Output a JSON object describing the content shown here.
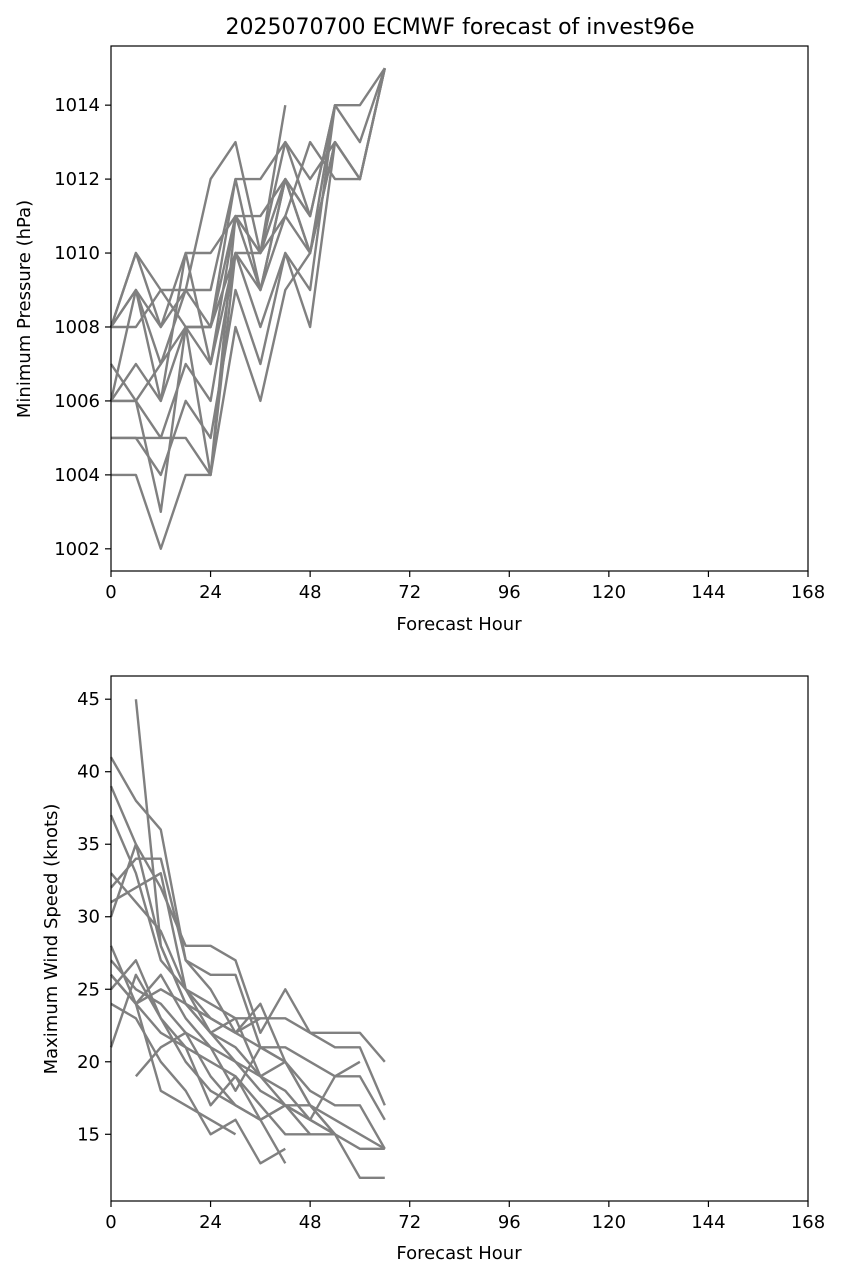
{
  "title": "2025070700 ECMWF forecast of invest96e",
  "colors": {
    "series": "#808080",
    "axis": "#000000",
    "background": "#ffffff"
  },
  "chart_data": [
    {
      "type": "line",
      "title": "2025070700 ECMWF forecast of invest96e",
      "xlabel": "Forecast Hour",
      "ylabel": "Minimum Pressure (hPa)",
      "xlim": [
        0,
        168
      ],
      "ylim": [
        1001.4,
        1015.6
      ],
      "xticks": [
        0,
        24,
        48,
        72,
        96,
        120,
        144,
        168
      ],
      "yticks": [
        1002,
        1004,
        1006,
        1008,
        1010,
        1012,
        1014
      ],
      "grid": false,
      "series": [
        {
          "x": [
            0,
            6,
            12,
            18,
            24,
            30,
            36,
            42,
            48,
            54,
            60,
            66
          ],
          "y": [
            1008,
            1010,
            1008,
            1010,
            1010,
            1011,
            1011,
            1012,
            1011,
            1014,
            1014,
            1015
          ]
        },
        {
          "x": [
            0,
            6,
            12,
            18,
            24,
            30,
            36,
            42,
            48,
            54,
            60,
            66
          ],
          "y": [
            1008,
            1009,
            1008,
            1009,
            1012,
            1013,
            1010,
            1013,
            1011,
            1014,
            1013,
            1015
          ]
        },
        {
          "x": [
            0,
            6,
            12,
            18,
            24,
            30,
            36,
            42,
            48,
            54,
            60,
            66
          ],
          "y": [
            1008,
            1009,
            1007,
            1009,
            1009,
            1012,
            1012,
            1013,
            1012,
            1013,
            1012,
            1015
          ]
        },
        {
          "x": [
            0,
            6,
            12,
            18,
            24,
            30,
            36,
            42,
            48,
            54,
            60,
            66
          ],
          "y": [
            1008,
            1010,
            1009,
            1009,
            1008,
            1011,
            1010,
            1012,
            1010,
            1013,
            1012,
            1015
          ]
        },
        {
          "x": [
            0,
            6,
            12,
            18,
            24,
            30,
            36,
            42,
            48,
            54,
            60,
            66
          ],
          "y": [
            1008,
            1008,
            1009,
            1008,
            1008,
            1012,
            1009,
            1011,
            1013,
            1012,
            1012,
            1015
          ]
        },
        {
          "x": [
            0,
            6,
            12,
            18,
            24,
            30,
            36,
            42
          ],
          "y": [
            1006,
            1009,
            1006,
            1010,
            1007,
            1011,
            1010,
            1014
          ]
        },
        {
          "x": [
            0,
            6,
            12,
            18,
            24,
            30,
            36,
            42,
            48,
            54
          ],
          "y": [
            1007,
            1006,
            1007,
            1008,
            1007,
            1010,
            1010,
            1011,
            1010,
            1014
          ]
        },
        {
          "x": [
            0,
            6,
            12,
            18,
            24,
            30,
            36,
            42,
            48,
            54
          ],
          "y": [
            1006,
            1007,
            1006,
            1008,
            1008,
            1010,
            1009,
            1012,
            1010,
            1013
          ]
        },
        {
          "x": [
            0,
            6,
            12,
            18,
            24,
            30,
            36,
            42,
            48,
            54
          ],
          "y": [
            1006,
            1006,
            1005,
            1007,
            1006,
            1010,
            1008,
            1010,
            1009,
            1014
          ]
        },
        {
          "x": [
            0,
            6,
            12,
            18,
            24,
            30,
            36,
            42,
            48,
            54
          ],
          "y": [
            1005,
            1005,
            1004,
            1006,
            1005,
            1009,
            1007,
            1010,
            1008,
            1013
          ]
        },
        {
          "x": [
            0,
            6,
            12,
            18,
            24,
            30,
            36,
            42,
            48
          ],
          "y": [
            1006,
            1006,
            1003,
            1008,
            1004,
            1008,
            1006,
            1009,
            1010
          ]
        },
        {
          "x": [
            0,
            6,
            12,
            18,
            24,
            30,
            36,
            42,
            48
          ],
          "y": [
            1004,
            1004,
            1002,
            1004,
            1004,
            1011,
            1009,
            1012,
            1011
          ]
        },
        {
          "x": [
            0,
            6,
            12,
            18,
            24,
            30
          ],
          "y": [
            1005,
            1005,
            1005,
            1005,
            1004,
            1010
          ]
        }
      ]
    },
    {
      "type": "line",
      "title": "",
      "xlabel": "Forecast Hour",
      "ylabel": "Maximum Wind Speed (knots)",
      "xlim": [
        0,
        168
      ],
      "ylim": [
        10.4,
        46.6
      ],
      "xticks": [
        0,
        24,
        48,
        72,
        96,
        120,
        144,
        168
      ],
      "yticks": [
        15,
        20,
        25,
        30,
        35,
        40,
        45
      ],
      "grid": false,
      "series": [
        {
          "x": [
            6,
            12,
            18,
            24,
            30,
            36,
            42,
            48,
            54,
            60,
            66
          ],
          "y": [
            45,
            28,
            24,
            22,
            21,
            19,
            17,
            16,
            15,
            14,
            14
          ]
        },
        {
          "x": [
            0,
            6,
            12,
            18,
            24,
            30,
            36,
            42,
            48,
            54,
            60,
            66
          ],
          "y": [
            41,
            38,
            36,
            27,
            26,
            26,
            21,
            21,
            20,
            19,
            19,
            16
          ]
        },
        {
          "x": [
            0,
            6,
            12,
            18,
            24,
            30,
            36,
            42,
            48,
            54,
            60,
            66
          ],
          "y": [
            39,
            35,
            32,
            28,
            28,
            27,
            22,
            25,
            22,
            22,
            22,
            20
          ]
        },
        {
          "x": [
            0,
            6,
            12,
            18,
            24,
            30,
            36,
            42,
            48,
            54,
            60,
            66
          ],
          "y": [
            37,
            33,
            27,
            25,
            24,
            23,
            23,
            23,
            22,
            21,
            21,
            17
          ]
        },
        {
          "x": [
            0,
            6,
            12,
            18,
            24,
            30,
            36,
            42,
            48,
            54,
            60,
            66
          ],
          "y": [
            33,
            31,
            29,
            25,
            23,
            22,
            24,
            20,
            18,
            17,
            17,
            14
          ]
        },
        {
          "x": [
            0,
            6,
            12,
            18,
            24,
            30,
            36,
            42,
            48,
            54,
            60,
            66
          ],
          "y": [
            32,
            34,
            34,
            27,
            25,
            22,
            21,
            20,
            17,
            16,
            15,
            14
          ]
        },
        {
          "x": [
            0,
            6,
            12,
            18,
            24,
            30,
            36,
            42,
            48,
            54,
            60,
            66
          ],
          "y": [
            31,
            32,
            33,
            25,
            22,
            23,
            19,
            18,
            16,
            15,
            12,
            12
          ]
        },
        {
          "x": [
            0,
            6,
            12,
            18,
            24,
            30,
            36,
            42,
            48,
            54,
            60
          ],
          "y": [
            30,
            35,
            28,
            24,
            22,
            20,
            18,
            17,
            16,
            19,
            20
          ]
        },
        {
          "x": [
            0,
            6,
            12,
            18,
            24,
            30,
            36,
            42,
            48,
            54
          ],
          "y": [
            28,
            24,
            26,
            23,
            21,
            20,
            19,
            20,
            17,
            15
          ]
        },
        {
          "x": [
            0,
            6,
            12,
            18,
            24,
            30,
            36,
            42,
            48,
            54
          ],
          "y": [
            27,
            25,
            24,
            22,
            19,
            17,
            16,
            17,
            17,
            15
          ]
        },
        {
          "x": [
            0,
            6,
            12,
            18,
            24,
            30,
            36,
            42,
            48,
            54
          ],
          "y": [
            26,
            24,
            22,
            21,
            20,
            19,
            17,
            15,
            15,
            15
          ]
        },
        {
          "x": [
            0,
            6,
            12,
            18,
            24,
            30,
            36,
            42,
            48
          ],
          "y": [
            25,
            27,
            23,
            20,
            18,
            17,
            16,
            17,
            15
          ]
        },
        {
          "x": [
            0,
            6,
            12,
            18,
            24,
            30,
            36,
            42
          ],
          "y": [
            24,
            23,
            20,
            18,
            15,
            16,
            13,
            14
          ]
        },
        {
          "x": [
            0,
            6,
            12,
            18,
            24,
            30,
            36,
            42
          ],
          "y": [
            21,
            26,
            23,
            21,
            17,
            19,
            16,
            13
          ]
        },
        {
          "x": [
            6,
            12,
            18,
            24,
            30,
            36,
            42
          ],
          "y": [
            19,
            21,
            22,
            21,
            18,
            21,
            20
          ]
        },
        {
          "x": [
            6,
            12,
            18,
            24,
            30,
            36
          ],
          "y": [
            24,
            25,
            24,
            23,
            22,
            23
          ]
        },
        {
          "x": [
            0,
            6,
            12,
            18,
            24,
            30
          ],
          "y": [
            26,
            24,
            18,
            17,
            16,
            15
          ]
        }
      ]
    }
  ]
}
